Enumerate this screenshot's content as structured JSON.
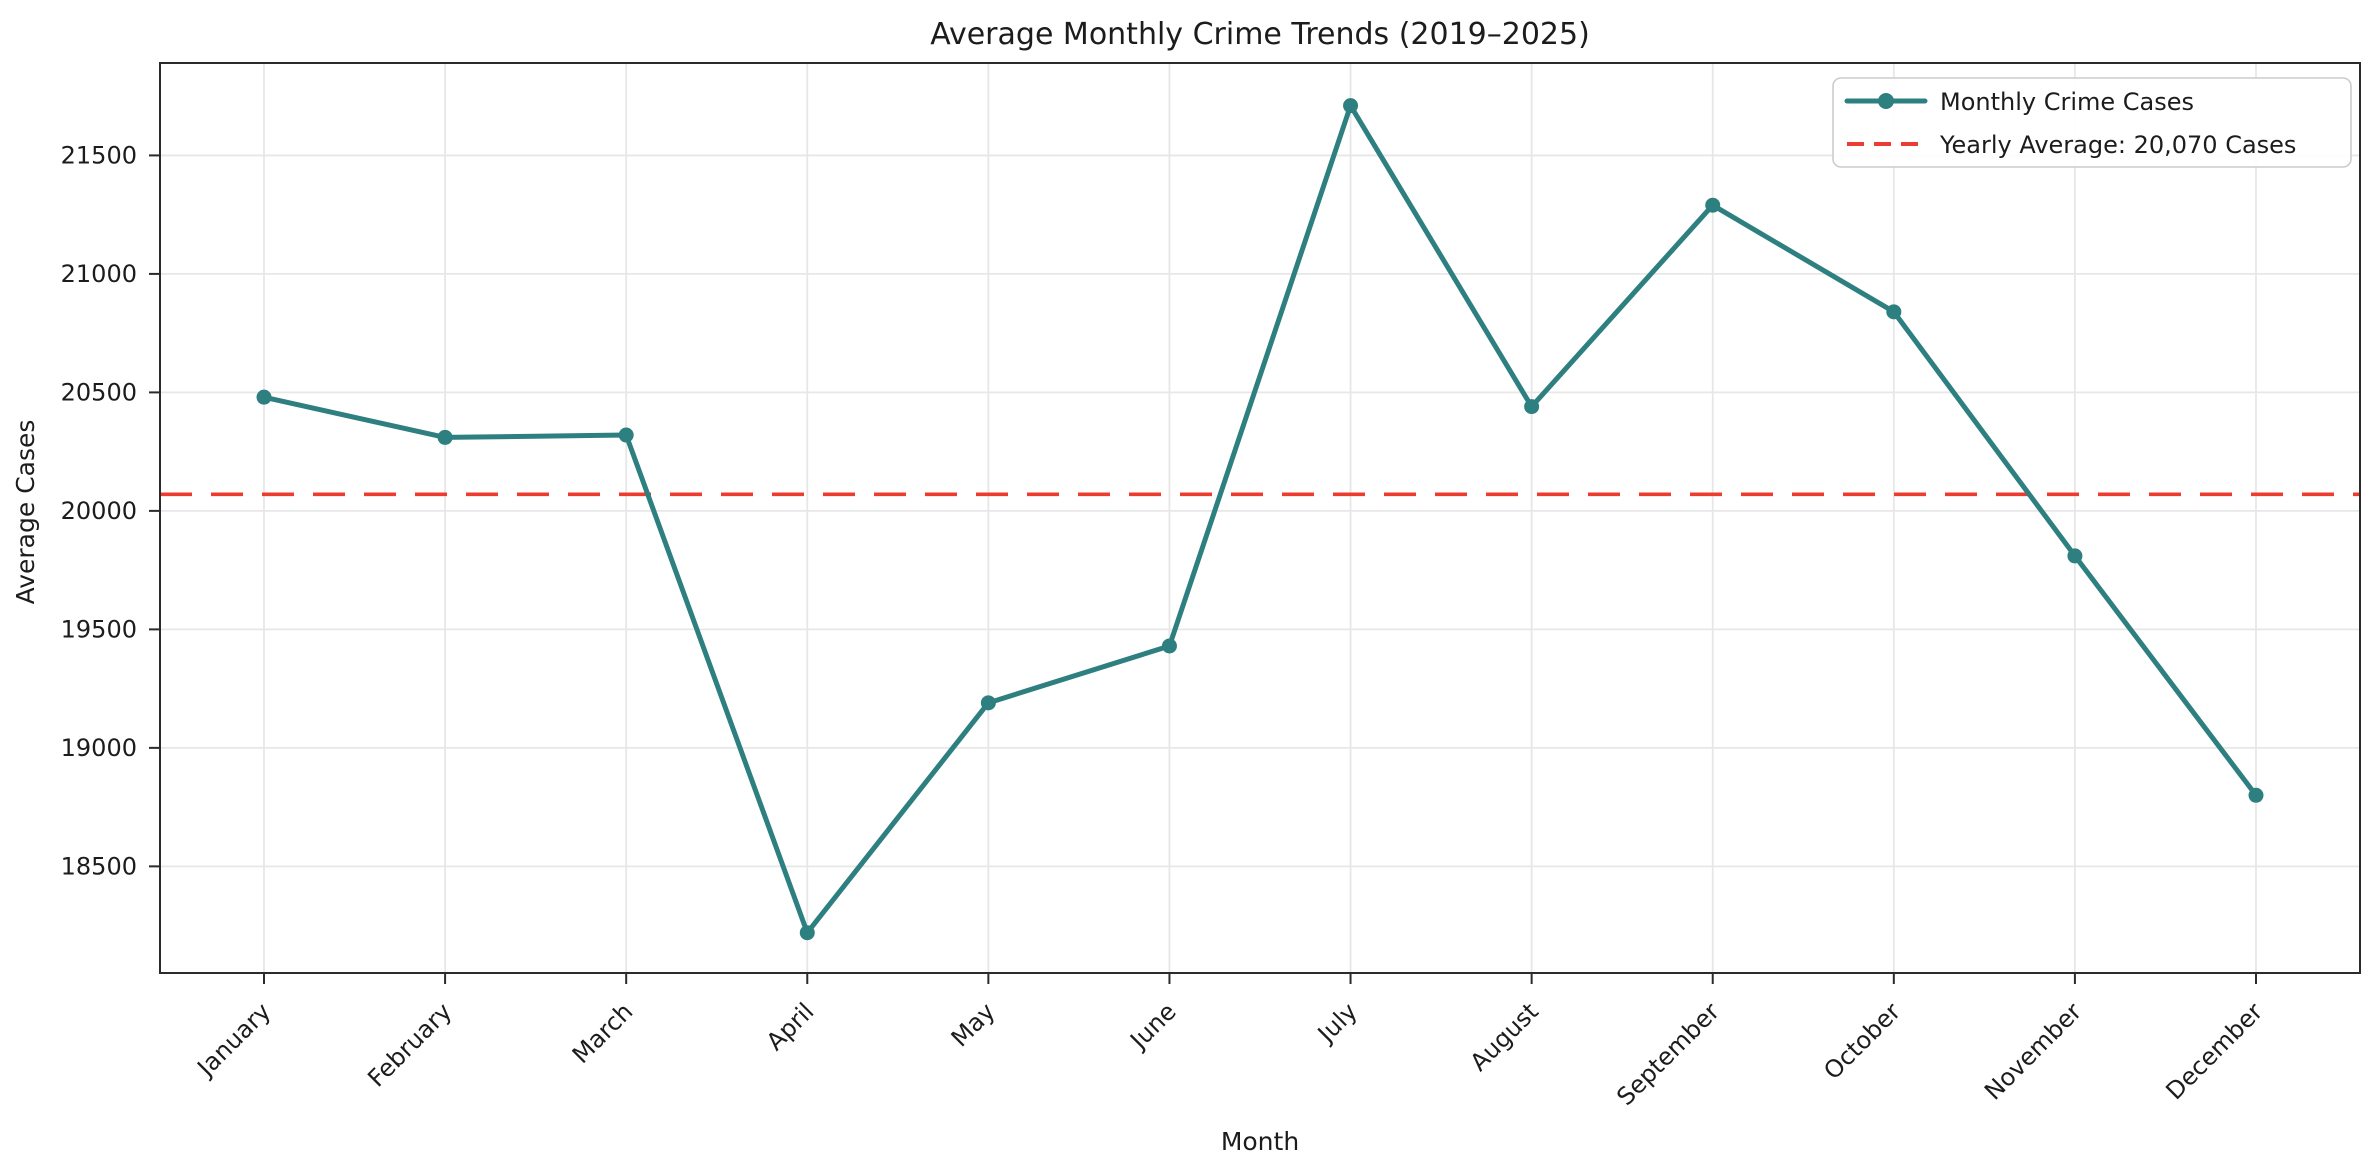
{
  "chart_data": {
    "type": "line",
    "title": "Average Monthly Crime Trends (2019–2025)",
    "xlabel": "Month",
    "ylabel": "Average Cases",
    "categories": [
      "January",
      "February",
      "March",
      "April",
      "May",
      "June",
      "July",
      "August",
      "September",
      "October",
      "November",
      "December"
    ],
    "series": [
      {
        "name": "Monthly Crime Cases",
        "values": [
          20480,
          20310,
          20320,
          18220,
          19190,
          19430,
          21710,
          20440,
          21290,
          20840,
          19810,
          18800
        ],
        "color": "#2e7f80",
        "marker": "circle",
        "line_style": "solid"
      }
    ],
    "reference_line": {
      "label": "Yearly Average: 20,070 Cases",
      "value": 20070,
      "color": "#ee3b2f",
      "line_style": "dashed"
    },
    "yticks": [
      18500,
      19000,
      19500,
      20000,
      20500,
      21000,
      21500
    ],
    "ylim": [
      18050,
      21890
    ],
    "grid": true,
    "legend_position": "upper right",
    "colors": {
      "text": "#1c1c1c",
      "spine": "#2b2b2b",
      "grid": "#e7e7e7",
      "background": "#ffffff"
    }
  }
}
